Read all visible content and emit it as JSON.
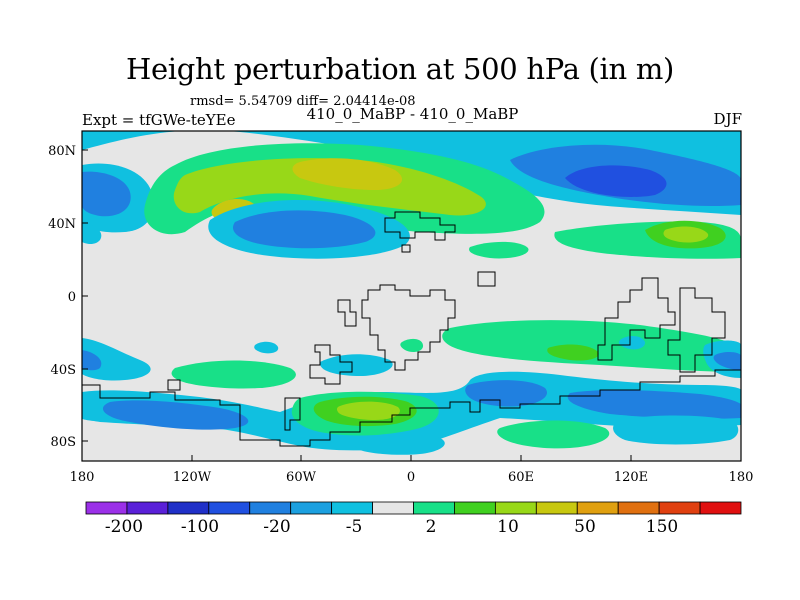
{
  "title": "Height perturbation at 500 hPa (in m)",
  "stats": "rmsd= 5.54709 diff= 2.04414e-08",
  "expt_label": "Expt = tfGWe-teYEe",
  "experiments": "410_0_MaBP - 410_0_MaBP",
  "season": "DJF",
  "map": {
    "lat_ticks": [
      "80N",
      "40N",
      "0",
      "40S",
      "80S"
    ],
    "lon_ticks": [
      "180",
      "120W",
      "60W",
      "0",
      "60E",
      "120E",
      "180"
    ],
    "background_color": "#e6e6e6"
  },
  "colorbar": {
    "colors": [
      "#9b30e8",
      "#5a20d8",
      "#2030c8",
      "#2050e0",
      "#2080e0",
      "#1ca0e0",
      "#10c0e0",
      "#e6e6e6",
      "#18e088",
      "#40d020",
      "#98d818",
      "#c8c810",
      "#e0a010",
      "#e07010",
      "#e04010",
      "#e01010"
    ],
    "labels": [
      "-200",
      "-100",
      "-20",
      "-5",
      "2",
      "10",
      "50",
      "150"
    ]
  }
}
